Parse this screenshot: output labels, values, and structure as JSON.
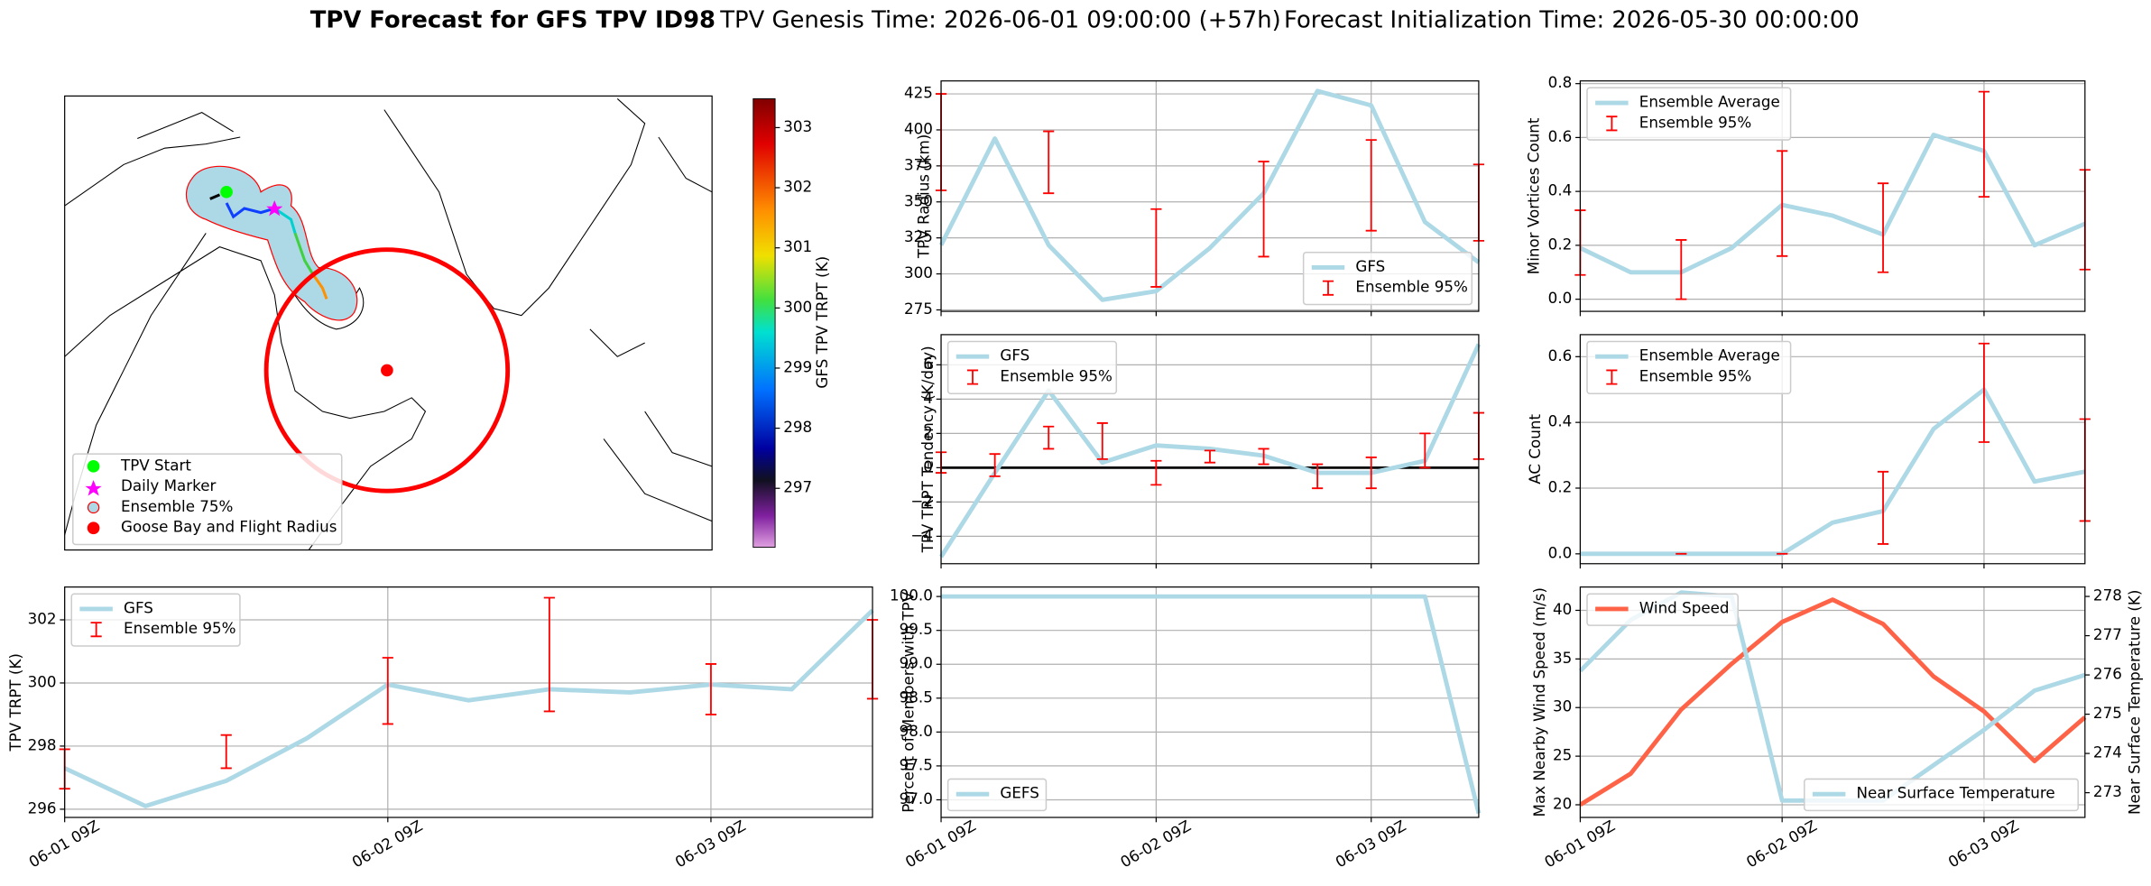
{
  "title": {
    "main": "TPV Forecast for GFS TPV ID98",
    "genesis": "TPV Genesis Time: 2026-06-01 09:00:00 (+57h)",
    "init": "Forecast Initialization Time: 2026-05-30 00:00:00"
  },
  "map": {
    "legend": [
      "TPV Start",
      "Daily Marker",
      "Ensemble 75%",
      "Goose Bay and Flight Radius"
    ],
    "colorbar": {
      "label": "GFS TPV TRPT (K)",
      "lim": [
        296.02,
        303.48
      ],
      "ticks": [
        297,
        298,
        299,
        300,
        301,
        302,
        303
      ]
    }
  },
  "chart_data": [
    {
      "type": "line",
      "ylabel": "TPV TRPT (K)",
      "x": [
        0,
        6,
        12,
        18,
        24,
        30,
        36,
        42,
        48,
        54,
        60
      ],
      "xlim": [
        0,
        60
      ],
      "xticks": [
        {
          "value": 0,
          "label": "06-01 09Z"
        },
        {
          "value": 24,
          "label": "06-02 09Z"
        },
        {
          "value": 48,
          "label": "06-03 09Z"
        }
      ],
      "ylim": [
        295.74,
        303.04
      ],
      "yticks": [
        296,
        298,
        300,
        302
      ],
      "grid": true,
      "legend": "upper left",
      "series": [
        {
          "name": "GFS",
          "color": "#add8e6",
          "values": [
            297.3,
            296.1,
            296.9,
            298.25,
            299.95,
            299.45,
            299.8,
            299.7,
            299.95,
            299.8,
            302.3
          ]
        },
        {
          "name": "Ensemble 95%",
          "kind": "errorbar",
          "color": "#ff0000",
          "low": [
            296.65,
            null,
            297.3,
            null,
            298.7,
            null,
            299.1,
            null,
            299.0,
            null,
            299.5
          ],
          "high": [
            297.9,
            null,
            298.35,
            null,
            300.8,
            null,
            302.7,
            null,
            300.6,
            null,
            302.0
          ]
        }
      ]
    },
    {
      "type": "line",
      "ylabel": "TPV Radius (km)",
      "x": [
        0,
        6,
        12,
        18,
        24,
        30,
        36,
        42,
        48,
        54,
        60
      ],
      "xlim": [
        0,
        60
      ],
      "xticks": [
        0,
        24,
        48
      ],
      "ylim": [
        274,
        434
      ],
      "yticks": [
        275,
        300,
        325,
        350,
        375,
        400,
        425
      ],
      "grid": true,
      "legend": "lower right",
      "series": [
        {
          "name": "GFS",
          "color": "#add8e6",
          "values": [
            320,
            394,
            320,
            282,
            288,
            318,
            356,
            427,
            417,
            336,
            308
          ]
        },
        {
          "name": "Ensemble 95%",
          "kind": "errorbar",
          "color": "#ff0000",
          "low": [
            358,
            null,
            356,
            null,
            291,
            null,
            312,
            null,
            330,
            null,
            323
          ],
          "high": [
            425,
            null,
            399,
            null,
            345,
            null,
            378,
            null,
            393,
            null,
            376
          ]
        }
      ]
    },
    {
      "type": "line",
      "ylabel": "TPV TRPT Tendency (K/day)",
      "x": [
        0,
        6,
        12,
        18,
        24,
        30,
        36,
        42,
        48,
        54,
        60
      ],
      "xlim": [
        0,
        60
      ],
      "xticks": [
        0,
        24,
        48
      ],
      "ylim": [
        -5.6,
        7.76
      ],
      "yticks": [
        {
          "value": -4,
          "label": "−4"
        },
        {
          "value": -2,
          "label": "−2"
        },
        0,
        2,
        4,
        6
      ],
      "grid": true,
      "hline": 0,
      "legend": "upper left",
      "series": [
        {
          "name": "GFS",
          "color": "#add8e6",
          "values": [
            -5.2,
            -0.3,
            4.5,
            0.3,
            1.3,
            1.1,
            0.7,
            -0.3,
            -0.3,
            0.4,
            7.2
          ]
        },
        {
          "name": "Ensemble 95%",
          "kind": "errorbar",
          "color": "#ff0000",
          "low": [
            -0.3,
            -0.5,
            1.1,
            0.5,
            -1.0,
            0.3,
            0.2,
            -1.2,
            -1.2,
            0.0,
            0.5
          ],
          "high": [
            0.9,
            0.8,
            2.4,
            2.6,
            0.4,
            1.0,
            1.1,
            0.2,
            0.6,
            2.0,
            3.2
          ]
        }
      ]
    },
    {
      "type": "line",
      "ylabel": "Percent of Members with TPV",
      "x": [
        0,
        6,
        12,
        18,
        24,
        30,
        36,
        42,
        48,
        54,
        60
      ],
      "xlim": [
        0,
        60
      ],
      "xticks": [
        {
          "value": 0,
          "label": "06-01 09Z"
        },
        {
          "value": 24,
          "label": "06-02 09Z"
        },
        {
          "value": 48,
          "label": "06-03 09Z"
        }
      ],
      "ylim": [
        96.74,
        100.14
      ],
      "yticks": [
        {
          "value": 97,
          "label": "97.0"
        },
        {
          "value": 97.5,
          "label": "97.5"
        },
        {
          "value": 98,
          "label": "98.0"
        },
        {
          "value": 98.5,
          "label": "98.5"
        },
        {
          "value": 99,
          "label": "99.0"
        },
        {
          "value": 99.5,
          "label": "99.5"
        },
        {
          "value": 100,
          "label": "100.0"
        }
      ],
      "grid": true,
      "legend": "lower left",
      "series": [
        {
          "name": "GEFS",
          "color": "#add8e6",
          "values": [
            100,
            100,
            100,
            100,
            100,
            100,
            100,
            100,
            100,
            100,
            96.8
          ]
        }
      ]
    },
    {
      "type": "line",
      "ylabel": "Minor Vortices Count",
      "x": [
        0,
        6,
        12,
        18,
        24,
        30,
        36,
        42,
        48,
        54,
        60
      ],
      "xlim": [
        0,
        60
      ],
      "xticks": [
        0,
        24,
        48
      ],
      "ylim": [
        -0.045,
        0.81
      ],
      "yticks": [
        {
          "value": 0,
          "label": "0.0"
        },
        0.2,
        0.4,
        0.6,
        0.8
      ],
      "grid": true,
      "legend": "upper left",
      "series": [
        {
          "name": "Ensemble Average",
          "color": "#add8e6",
          "values": [
            0.19,
            0.1,
            0.1,
            0.19,
            0.35,
            0.31,
            0.24,
            0.61,
            0.55,
            0.2,
            0.28
          ]
        },
        {
          "name": "Ensemble 95%",
          "kind": "errorbar",
          "color": "#ff0000",
          "low": [
            0.09,
            null,
            0.0,
            null,
            0.16,
            null,
            0.1,
            null,
            0.38,
            null,
            0.11
          ],
          "high": [
            0.33,
            null,
            0.22,
            null,
            0.55,
            null,
            0.43,
            null,
            0.77,
            null,
            0.48
          ]
        }
      ]
    },
    {
      "type": "line",
      "ylabel": "AC Count",
      "x": [
        0,
        6,
        12,
        18,
        24,
        30,
        36,
        42,
        48,
        54,
        60
      ],
      "xlim": [
        0,
        60
      ],
      "xticks": [
        0,
        24,
        48
      ],
      "ylim": [
        -0.03,
        0.667
      ],
      "yticks": [
        {
          "value": 0,
          "label": "0.0"
        },
        0.2,
        0.4,
        0.6
      ],
      "grid": true,
      "legend": "upper left",
      "series": [
        {
          "name": "Ensemble Average",
          "color": "#add8e6",
          "values": [
            0,
            0,
            0,
            0,
            0,
            0.095,
            0.13,
            0.38,
            0.5,
            0.22,
            0.25
          ]
        },
        {
          "name": "Ensemble 95%",
          "kind": "errorbar",
          "color": "#ff0000",
          "low": [
            null,
            null,
            0,
            null,
            0,
            null,
            0.03,
            null,
            0.34,
            null,
            0.1
          ],
          "high": [
            null,
            null,
            0,
            null,
            0,
            null,
            0.25,
            null,
            0.64,
            null,
            0.41
          ]
        }
      ]
    },
    {
      "type": "line",
      "ylabel": "Max Nearby Wind Speed (m/s)",
      "ylabel_color": "#ff6347",
      "y2label": "Near Surface Temperature (K)",
      "y2label_color": "#4169e1",
      "x": [
        0,
        6,
        12,
        18,
        24,
        30,
        36,
        42,
        48,
        54,
        60
      ],
      "xlim": [
        0,
        60
      ],
      "xticks": [
        {
          "value": 0,
          "label": "06-01 09Z"
        },
        {
          "value": 24,
          "label": "06-02 09Z"
        },
        {
          "value": 48,
          "label": "06-03 09Z"
        }
      ],
      "ylim": [
        18.7,
        42.4
      ],
      "yticks": [
        20,
        25,
        30,
        35,
        40
      ],
      "y2lim": [
        272.37,
        278.24
      ],
      "y2ticks": [
        273,
        274,
        275,
        276,
        277,
        278
      ],
      "grid": true,
      "legend": "upper left",
      "y2legend": "lower right",
      "series": [
        {
          "name": "Wind Speed",
          "color": "#ff6347",
          "values": [
            20,
            23.2,
            29.8,
            34.5,
            38.8,
            41.1,
            38.6,
            33.2,
            29.6,
            24.5,
            29
          ]
        },
        {
          "name": "Near Surface Temperature",
          "color": "#add8e6",
          "axis": "y2",
          "values": [
            276.1,
            277.4,
            278.1,
            278.0,
            272.8,
            272.8,
            272.8,
            273.7,
            274.6,
            275.6,
            276.0
          ]
        }
      ]
    }
  ]
}
